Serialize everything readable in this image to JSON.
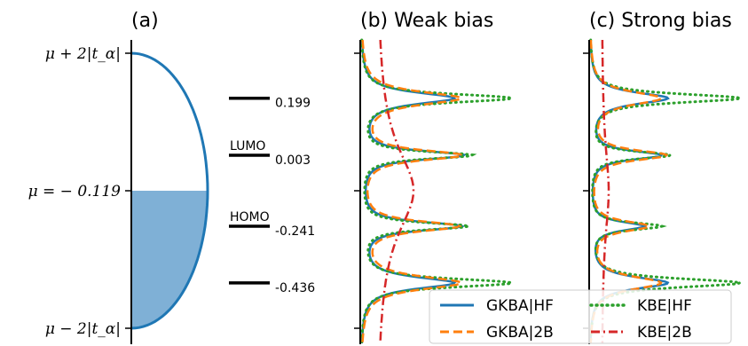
{
  "chart_data": [
    {
      "type": "area",
      "panel": "a",
      "title": "(a)",
      "ytick_labels": [
        "μ + 2|t_α|",
        "μ = − 0.119",
        "μ − 2|t_α|"
      ],
      "mu": -0.119,
      "band_half_width": "2|t_α|",
      "filled_below_mu": true,
      "levels": [
        {
          "energy": 0.199,
          "label": "0.199",
          "tag": ""
        },
        {
          "energy": 0.003,
          "label": "0.003",
          "tag": "LUMO"
        },
        {
          "energy": -0.241,
          "label": "-0.241",
          "tag": "HOMO"
        },
        {
          "energy": -0.436,
          "label": "-0.436",
          "tag": ""
        }
      ]
    },
    {
      "type": "line",
      "panel": "b",
      "title": "(b) Weak bias",
      "peaks": [
        0.199,
        0.003,
        -0.241,
        -0.436
      ]
    },
    {
      "type": "line",
      "panel": "c",
      "title": "(c) Strong bias",
      "peaks": [
        0.199,
        0.003,
        -0.241,
        -0.436
      ]
    }
  ],
  "legend": {
    "placement": "bottom-right",
    "entries": [
      {
        "label": "GKBA|HF",
        "color": "#1f77b4",
        "style": "solid"
      },
      {
        "label": "KBE|HF",
        "color": "#2ca02c",
        "style": "dotted"
      },
      {
        "label": "GKBA|2B",
        "color": "#ff7f0e",
        "style": "dashed"
      },
      {
        "label": "KBE|2B",
        "color": "#d62728",
        "style": "dashdot"
      }
    ]
  },
  "colors": {
    "band_fill": "#7fb0d6",
    "band_edge": "#1f77b4"
  }
}
